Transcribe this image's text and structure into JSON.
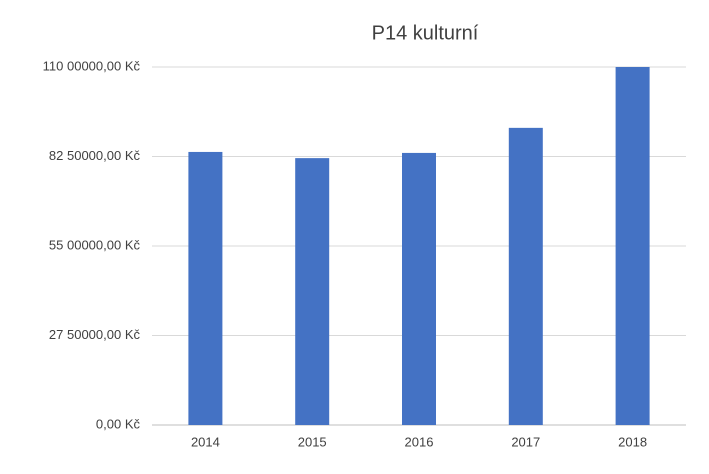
{
  "chart_data": {
    "type": "bar",
    "title": "P14 kulturní",
    "categories": [
      "2014",
      "2015",
      "2016",
      "2017",
      "2018"
    ],
    "values": [
      8390000,
      8200000,
      8360000,
      9130000,
      11000000
    ],
    "color": "#4472c4",
    "ylim": [
      0,
      11000000
    ],
    "yticks": [
      {
        "value": 0,
        "label": "0,00 Kč"
      },
      {
        "value": 2750000,
        "label": "27 50000,00 Kč"
      },
      {
        "value": 5500000,
        "label": "55 00000,00 Kč"
      },
      {
        "value": 8250000,
        "label": "82 50000,00 Kč"
      },
      {
        "value": 11000000,
        "label": "110 00000,00 Kč"
      }
    ],
    "grid": true
  }
}
